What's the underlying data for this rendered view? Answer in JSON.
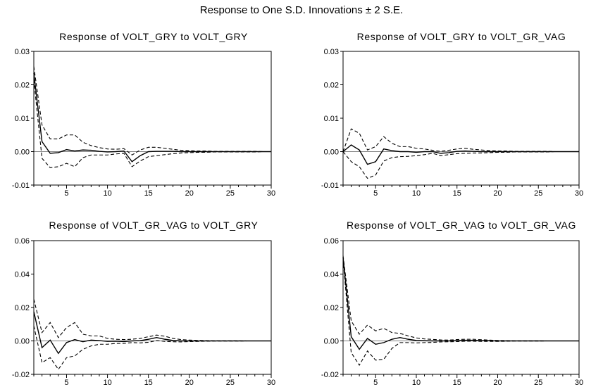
{
  "title": "Response to One S.D. Innovations ± 2 S.E.",
  "x_ticks": [
    "5",
    "10",
    "15",
    "20",
    "25",
    "30"
  ],
  "chart_data": [
    {
      "type": "line",
      "title": "Response of VOLT_GRY to VOLT_GRY",
      "xlim": [
        1,
        30
      ],
      "ylim": [
        -0.01,
        0.03
      ],
      "yticks": [
        "-0.01",
        "0.00",
        "0.01",
        "0.02",
        "0.03"
      ],
      "series": [
        {
          "role": "response",
          "style": "solid",
          "values": [
            0.0235,
            0.003,
            -0.0005,
            -0.0003,
            0.0006,
            0.0002,
            0.0005,
            0.0004,
            0.0001,
            -0.0001,
            0.0,
            0.0002,
            -0.003,
            -0.0012,
            0.0,
            0.0001,
            0.0001,
            0.0001,
            0.0,
            0.0,
            0.0,
            0.0,
            0.0,
            0.0,
            0.0,
            0.0,
            0.0,
            0.0,
            0.0,
            0.0
          ]
        },
        {
          "role": "upper band",
          "style": "dashed",
          "values": [
            0.0255,
            0.008,
            0.0038,
            0.0038,
            0.005,
            0.005,
            0.0028,
            0.0018,
            0.0012,
            0.0008,
            0.0007,
            0.0009,
            -0.001,
            0.0005,
            0.0013,
            0.0013,
            0.001,
            0.0007,
            0.0004,
            0.0003,
            0.0002,
            0.0002,
            0.0001,
            0.0001,
            0.0001,
            0.0001,
            0.0001,
            0.0001,
            0.0,
            0.0
          ]
        },
        {
          "role": "lower band",
          "style": "dashed",
          "values": [
            0.0215,
            -0.002,
            -0.0048,
            -0.0045,
            -0.0035,
            -0.0045,
            -0.0018,
            -0.001,
            -0.001,
            -0.001,
            -0.0007,
            -0.0005,
            -0.0045,
            -0.0028,
            -0.0015,
            -0.0012,
            -0.0009,
            -0.0006,
            -0.0004,
            -0.0003,
            -0.0002,
            -0.0002,
            -0.0001,
            -0.0001,
            -0.0001,
            -0.0001,
            -0.0001,
            -0.0001,
            0.0,
            0.0
          ]
        }
      ]
    },
    {
      "type": "line",
      "title": "Response of VOLT_GRY to VOLT_GR_VAG",
      "xlim": [
        1,
        30
      ],
      "ylim": [
        -0.01,
        0.03
      ],
      "yticks": [
        "-0.01",
        "0.00",
        "0.01",
        "0.02",
        "0.03"
      ],
      "series": [
        {
          "role": "response",
          "style": "solid",
          "values": [
            0.0,
            0.002,
            0.0005,
            -0.0038,
            -0.003,
            0.0008,
            0.0003,
            0.0,
            0.0,
            -0.0002,
            0.0,
            0.0,
            -0.0005,
            -0.0003,
            0.0001,
            0.0002,
            0.0001,
            0.0,
            0.0,
            0.0,
            0.0,
            0.0,
            0.0,
            0.0,
            0.0,
            0.0,
            0.0,
            0.0,
            0.0,
            0.0
          ]
        },
        {
          "role": "upper band",
          "style": "dashed",
          "values": [
            0.0,
            0.0068,
            0.0055,
            0.0005,
            0.0015,
            0.0045,
            0.0025,
            0.0015,
            0.0015,
            0.001,
            0.0008,
            0.0004,
            0.0001,
            0.0004,
            0.0008,
            0.001,
            0.0007,
            0.0005,
            0.0003,
            0.0002,
            0.0002,
            0.0001,
            0.0001,
            0.0001,
            0.0001,
            0.0001,
            0.0,
            0.0,
            0.0,
            0.0
          ]
        },
        {
          "role": "lower band",
          "style": "dashed",
          "values": [
            0.0,
            -0.003,
            -0.0045,
            -0.008,
            -0.007,
            -0.0028,
            -0.0018,
            -0.0015,
            -0.0014,
            -0.0012,
            -0.0009,
            -0.0005,
            -0.0012,
            -0.0009,
            -0.0006,
            -0.0005,
            -0.0004,
            -0.0004,
            -0.0003,
            -0.0002,
            -0.0002,
            -0.0001,
            -0.0001,
            -0.0001,
            -0.0001,
            -0.0001,
            0.0,
            0.0,
            0.0,
            0.0
          ]
        }
      ]
    },
    {
      "type": "line",
      "title": "Response of VOLT_GR_VAG to VOLT_GRY",
      "xlim": [
        1,
        30
      ],
      "ylim": [
        -0.02,
        0.06
      ],
      "yticks": [
        "-0.02",
        "0.00",
        "0.02",
        "0.04",
        "0.06"
      ],
      "series": [
        {
          "role": "response",
          "style": "solid",
          "values": [
            0.0175,
            -0.004,
            0.0005,
            -0.0075,
            -0.001,
            0.0008,
            -0.0005,
            0.0005,
            0.0002,
            -0.0003,
            -0.0002,
            -0.0004,
            0.0,
            0.0002,
            0.001,
            0.002,
            0.001,
            0.0003,
            0.0,
            0.0,
            0.0,
            0.0,
            0.0,
            0.0,
            0.0,
            0.0,
            0.0,
            0.0,
            0.0,
            0.0
          ]
        },
        {
          "role": "upper band",
          "style": "dashed",
          "values": [
            0.025,
            0.005,
            0.011,
            0.002,
            0.008,
            0.011,
            0.004,
            0.003,
            0.003,
            0.0015,
            0.001,
            0.0008,
            0.001,
            0.0015,
            0.0025,
            0.0035,
            0.0028,
            0.0015,
            0.0008,
            0.0005,
            0.0003,
            0.0002,
            0.0001,
            0.0001,
            0.0001,
            0.0001,
            0.0,
            0.0,
            0.0,
            0.0
          ]
        },
        {
          "role": "lower band",
          "style": "dashed",
          "values": [
            0.009,
            -0.013,
            -0.01,
            -0.017,
            -0.01,
            -0.009,
            -0.005,
            -0.003,
            -0.002,
            -0.002,
            -0.0015,
            -0.0015,
            -0.001,
            -0.0012,
            -0.0008,
            0.0002,
            -0.0003,
            -0.0005,
            -0.0006,
            -0.0004,
            -0.0003,
            -0.0002,
            -0.0001,
            -0.0001,
            -0.0001,
            -0.0001,
            0.0,
            0.0,
            0.0,
            0.0
          ]
        }
      ]
    },
    {
      "type": "line",
      "title": "Response of VOLT_GR_VAG to VOLT_GR_VAG",
      "xlim": [
        1,
        30
      ],
      "ylim": [
        -0.02,
        0.06
      ],
      "yticks": [
        "-0.02",
        "0.00",
        "0.02",
        "0.04",
        "0.06"
      ],
      "series": [
        {
          "role": "response",
          "style": "solid",
          "values": [
            0.05,
            0.0025,
            -0.005,
            0.0015,
            -0.002,
            -0.001,
            0.001,
            0.002,
            0.001,
            0.0003,
            0.0001,
            0.0,
            0.0,
            0.0,
            0.0002,
            0.0004,
            0.0004,
            0.0002,
            0.0001,
            0.0,
            0.0,
            0.0,
            0.0,
            0.0,
            0.0,
            0.0,
            0.0,
            0.0,
            0.0,
            0.0
          ]
        },
        {
          "role": "upper band",
          "style": "dashed",
          "values": [
            0.051,
            0.012,
            0.004,
            0.0095,
            0.006,
            0.0075,
            0.005,
            0.0045,
            0.003,
            0.0018,
            0.0012,
            0.0009,
            0.0006,
            0.0005,
            0.0008,
            0.001,
            0.001,
            0.0007,
            0.0005,
            0.0003,
            0.0002,
            0.0001,
            0.0001,
            0.0001,
            0.0001,
            0.0,
            0.0,
            0.0,
            0.0,
            0.0
          ]
        },
        {
          "role": "lower band",
          "style": "dashed",
          "values": [
            0.049,
            -0.007,
            -0.0145,
            -0.006,
            -0.0115,
            -0.011,
            -0.0045,
            -0.001,
            -0.001,
            -0.0012,
            -0.001,
            -0.0009,
            -0.0006,
            -0.0005,
            -0.0004,
            -0.0002,
            -0.0002,
            -0.0003,
            -0.0003,
            -0.0003,
            -0.0002,
            -0.0001,
            -0.0001,
            -0.0001,
            -0.0001,
            0.0,
            0.0,
            0.0,
            0.0,
            0.0
          ]
        }
      ]
    }
  ]
}
